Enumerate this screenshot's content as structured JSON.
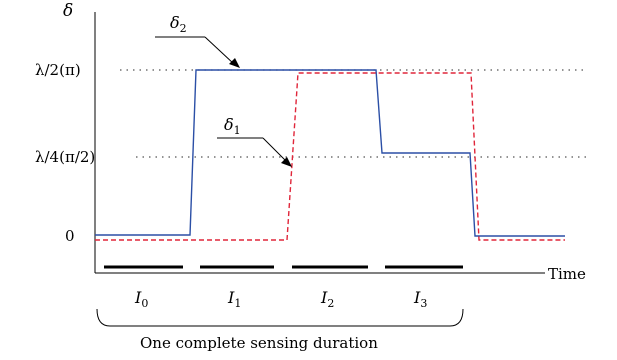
{
  "labels": {
    "y_axis": "δ",
    "x_axis": "Time",
    "delta2_base": "δ",
    "delta2_sub": "2",
    "delta1_base": "δ",
    "delta1_sub": "1",
    "level_high": "λ/2(π)",
    "level_mid": "λ/4(π/2)",
    "level_zero": "0",
    "bracket_caption": "One complete sensing duration"
  },
  "intervals": [
    {
      "base": "I",
      "sub": "0"
    },
    {
      "base": "I",
      "sub": "1"
    },
    {
      "base": "I",
      "sub": "2"
    },
    {
      "base": "I",
      "sub": "3"
    }
  ],
  "colors": {
    "delta2": "#2b4fa6",
    "delta1": "#e0263a",
    "axes": "#000000",
    "guides": "#555555"
  }
}
